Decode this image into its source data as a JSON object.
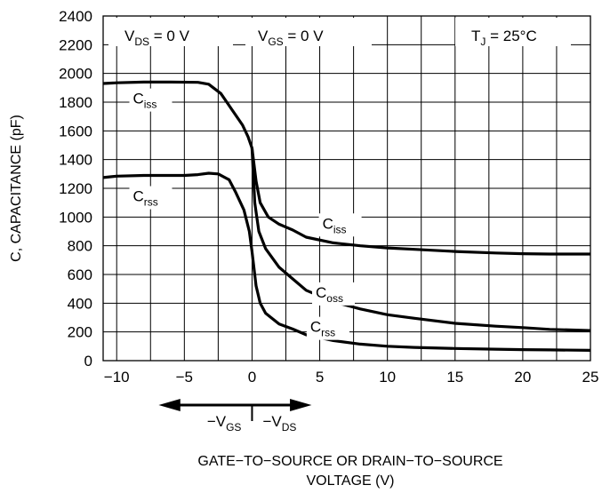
{
  "chart_data": {
    "type": "line",
    "title": "",
    "xlabel": "GATE−TO−SOURCE OR DRAIN−TO−SOURCE VOLTAGE (V)",
    "xlabel_lines": [
      "GATE−TO−SOURCE OR DRAIN−TO−SOURCE",
      "VOLTAGE (V)"
    ],
    "ylabel": "C, CAPACITANCE (pF)",
    "xlim": [
      -11,
      25
    ],
    "ylim": [
      0,
      2400
    ],
    "grid": true,
    "x_ticks": [
      -10,
      -5,
      0,
      5,
      10,
      15,
      20,
      25
    ],
    "x_tick_labels": [
      "−10",
      "−5",
      "0",
      "5",
      "10",
      "15",
      "20",
      "25"
    ],
    "y_ticks": [
      0,
      200,
      400,
      600,
      800,
      1000,
      1200,
      1400,
      1600,
      1800,
      2000,
      2200,
      2400
    ],
    "y_tick_labels": [
      "0",
      "200",
      "400",
      "600",
      "800",
      "1000",
      "1200",
      "1400",
      "1600",
      "1800",
      "2000",
      "2200",
      "2400"
    ],
    "conditions": [
      {
        "main": "V",
        "sub": "DS",
        "rest": " = 0 V"
      },
      {
        "main": "V",
        "sub": "GS",
        "rest": " = 0 V"
      },
      {
        "main": "T",
        "sub": "J",
        "rest": " = 25°C"
      }
    ],
    "arrow_labels": [
      {
        "main": "−V",
        "sub": "GS"
      },
      {
        "main": "−V",
        "sub": "DS"
      }
    ],
    "series": [
      {
        "name": "Ciss",
        "main": "C",
        "sub": "iss",
        "label_points": [
          {
            "x": -8.8,
            "y": 1790
          },
          {
            "x": 5.2,
            "y": 920
          }
        ],
        "points": [
          [
            -11,
            1930
          ],
          [
            -10,
            1935
          ],
          [
            -8,
            1940
          ],
          [
            -6,
            1940
          ],
          [
            -4,
            1938
          ],
          [
            -3.2,
            1925
          ],
          [
            -2.3,
            1860
          ],
          [
            -1.5,
            1750
          ],
          [
            -0.7,
            1640
          ],
          [
            -0.3,
            1560
          ],
          [
            0,
            1480
          ],
          [
            0.3,
            1250
          ],
          [
            0.6,
            1100
          ],
          [
            1.2,
            1000
          ],
          [
            2,
            950
          ],
          [
            3,
            910
          ],
          [
            4,
            860
          ],
          [
            6,
            820
          ],
          [
            8,
            800
          ],
          [
            10,
            785
          ],
          [
            12,
            775
          ],
          [
            15,
            760
          ],
          [
            18,
            750
          ],
          [
            20,
            745
          ],
          [
            22,
            742
          ],
          [
            25,
            742
          ]
        ]
      },
      {
        "name": "Coss",
        "main": "C",
        "sub": "oss",
        "label_points": [
          {
            "x": 4.7,
            "y": 440
          }
        ],
        "points": [
          [
            0,
            1480
          ],
          [
            0.2,
            1100
          ],
          [
            0.5,
            900
          ],
          [
            1,
            780
          ],
          [
            2,
            650
          ],
          [
            3,
            570
          ],
          [
            4,
            490
          ],
          [
            6,
            410
          ],
          [
            8,
            360
          ],
          [
            10,
            320
          ],
          [
            12,
            295
          ],
          [
            15,
            260
          ],
          [
            18,
            240
          ],
          [
            20,
            230
          ],
          [
            22,
            218
          ],
          [
            25,
            210
          ]
        ]
      },
      {
        "name": "Crss",
        "main": "C",
        "sub": "rss",
        "label_points": [
          {
            "x": -8.8,
            "y": 1110
          },
          {
            "x": 4.3,
            "y": 200
          }
        ],
        "points": [
          [
            -11,
            1275
          ],
          [
            -10,
            1285
          ],
          [
            -8,
            1290
          ],
          [
            -6,
            1290
          ],
          [
            -5,
            1290
          ],
          [
            -4,
            1295
          ],
          [
            -3.2,
            1305
          ],
          [
            -2.5,
            1300
          ],
          [
            -1.7,
            1260
          ],
          [
            -1.2,
            1170
          ],
          [
            -0.6,
            1050
          ],
          [
            -0.2,
            900
          ],
          [
            0,
            760
          ],
          [
            0.3,
            520
          ],
          [
            0.6,
            400
          ],
          [
            1,
            330
          ],
          [
            2,
            255
          ],
          [
            3,
            220
          ],
          [
            4,
            180
          ],
          [
            6,
            140
          ],
          [
            8,
            115
          ],
          [
            10,
            100
          ],
          [
            12,
            92
          ],
          [
            15,
            85
          ],
          [
            18,
            80
          ],
          [
            20,
            77
          ],
          [
            22,
            75
          ],
          [
            25,
            72
          ]
        ]
      }
    ]
  }
}
